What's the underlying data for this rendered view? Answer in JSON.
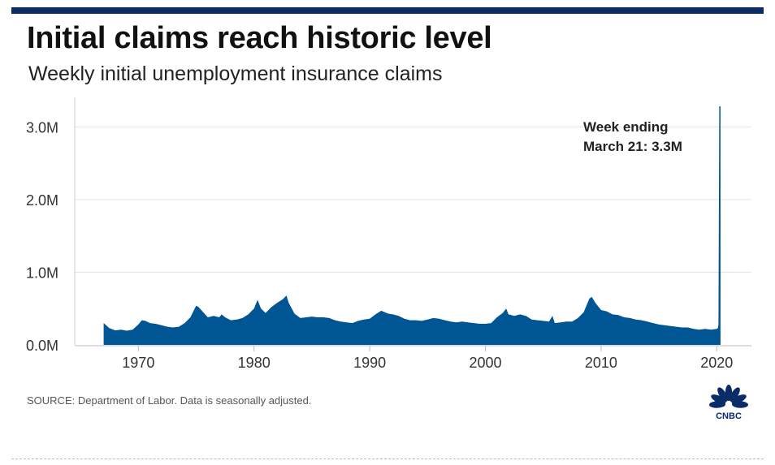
{
  "header": {
    "title": "Initial claims reach historic level",
    "subtitle": "Weekly initial unemployment insurance claims"
  },
  "footer": {
    "source": "SOURCE: Department of Labor. Data is seasonally adjusted.",
    "logo_text": "CNBC"
  },
  "colors": {
    "series": "#005594",
    "brand_bar": "#0a2c67",
    "grid": "#e4e4e4",
    "axis_text": "#333333"
  },
  "chart_data": {
    "type": "area",
    "title": "Initial claims reach historic level",
    "subtitle": "Weekly initial unemployment insurance claims",
    "xlabel": "",
    "ylabel": "",
    "xlim": [
      1964.5,
      2023
    ],
    "ylim": [
      0,
      3350000
    ],
    "x_ticks": [
      1970,
      1980,
      1990,
      2000,
      2010,
      2020
    ],
    "y_ticks": [
      {
        "value": 0,
        "label": "0.0M"
      },
      {
        "value": 1000000,
        "label": "1.0M"
      },
      {
        "value": 2000000,
        "label": "2.0M"
      },
      {
        "value": 3000000,
        "label": "3.0M"
      }
    ],
    "grid": "horizontal",
    "legend": "none",
    "annotation": {
      "lines": [
        "Week ending",
        "March 21: 3.3M"
      ],
      "x": 2020.22,
      "y": 3283000
    },
    "series": [
      {
        "x": [
          1967.0,
          1967.5,
          1968.0,
          1968.5,
          1969.0,
          1969.5,
          1970.0,
          1970.3,
          1970.6,
          1971.0,
          1971.5,
          1972.0,
          1972.5,
          1973.0,
          1973.5,
          1974.0,
          1974.5,
          1975.0,
          1975.2,
          1975.6,
          1976.0,
          1976.5,
          1977.0,
          1977.2,
          1977.5,
          1978.0,
          1978.5,
          1979.0,
          1979.5,
          1980.0,
          1980.3,
          1980.6,
          1981.0,
          1981.5,
          1982.0,
          1982.5,
          1982.8,
          1983.0,
          1983.5,
          1984.0,
          1984.5,
          1985.0,
          1985.5,
          1986.0,
          1986.5,
          1987.0,
          1987.5,
          1988.0,
          1988.5,
          1989.0,
          1989.5,
          1990.0,
          1990.5,
          1991.0,
          1991.3,
          1991.6,
          1992.0,
          1992.5,
          1993.0,
          1993.5,
          1994.0,
          1994.5,
          1995.0,
          1995.5,
          1996.0,
          1996.5,
          1997.0,
          1997.5,
          1998.0,
          1998.5,
          1999.0,
          1999.5,
          2000.0,
          2000.5,
          2001.0,
          2001.5,
          2001.8,
          2002.0,
          2002.5,
          2003.0,
          2003.5,
          2004.0,
          2004.5,
          2005.0,
          2005.5,
          2005.8,
          2006.0,
          2006.5,
          2007.0,
          2007.5,
          2008.0,
          2008.5,
          2009.0,
          2009.2,
          2009.5,
          2010.0,
          2010.5,
          2011.0,
          2011.5,
          2012.0,
          2012.5,
          2013.0,
          2013.5,
          2014.0,
          2014.5,
          2015.0,
          2015.5,
          2016.0,
          2016.5,
          2017.0,
          2017.5,
          2018.0,
          2018.5,
          2019.0,
          2019.5,
          2020.0,
          2020.1,
          2020.15,
          2020.22
        ],
        "values": [
          300000,
          230000,
          200000,
          210000,
          195000,
          210000,
          280000,
          340000,
          330000,
          300000,
          290000,
          270000,
          250000,
          240000,
          250000,
          300000,
          380000,
          540000,
          520000,
          450000,
          380000,
          400000,
          380000,
          420000,
          380000,
          340000,
          350000,
          370000,
          420000,
          500000,
          620000,
          500000,
          440000,
          520000,
          580000,
          630000,
          680000,
          580000,
          430000,
          370000,
          380000,
          390000,
          380000,
          380000,
          370000,
          340000,
          320000,
          310000,
          300000,
          330000,
          350000,
          360000,
          420000,
          470000,
          450000,
          430000,
          420000,
          400000,
          360000,
          340000,
          340000,
          330000,
          350000,
          370000,
          360000,
          340000,
          320000,
          310000,
          320000,
          310000,
          300000,
          290000,
          290000,
          300000,
          380000,
          440000,
          500000,
          420000,
          400000,
          420000,
          400000,
          350000,
          340000,
          330000,
          320000,
          400000,
          300000,
          310000,
          320000,
          320000,
          370000,
          450000,
          640000,
          660000,
          580000,
          480000,
          460000,
          420000,
          410000,
          380000,
          370000,
          350000,
          340000,
          320000,
          300000,
          280000,
          270000,
          260000,
          250000,
          240000,
          240000,
          220000,
          210000,
          220000,
          210000,
          220000,
          230000,
          280000,
          3283000
        ]
      }
    ]
  }
}
